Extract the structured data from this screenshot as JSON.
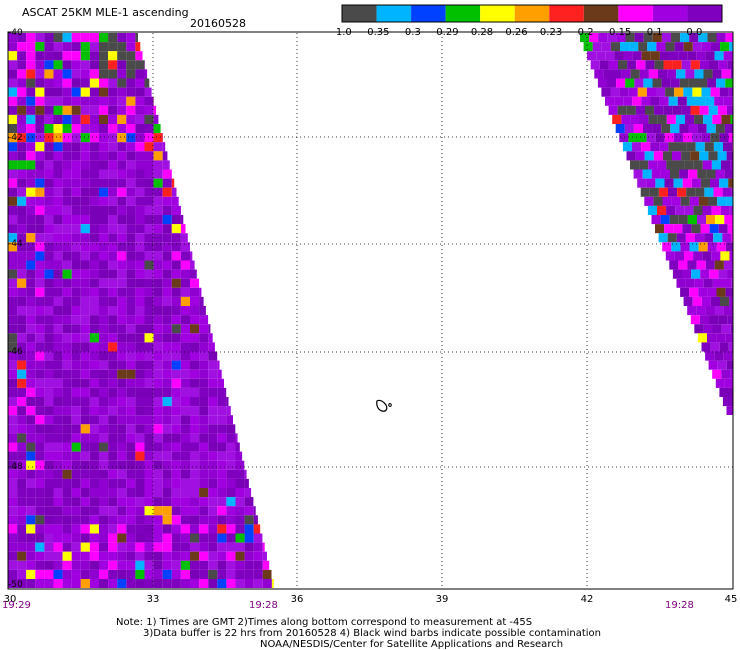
{
  "header": {
    "title": "ASCAT 25KM MLE-1 ascending",
    "date": "20160528"
  },
  "colorbar": {
    "labels": [
      "-1.0",
      "-0.35",
      "-0.3",
      "-0.29",
      "-0.28",
      "-0.26",
      "-0.23",
      "-0.2",
      "-0.15",
      "-0.1",
      "0.0"
    ],
    "colors": [
      "#4a4a4a",
      "#00b4ff",
      "#0040ff",
      "#00c000",
      "#ffff00",
      "#ffa000",
      "#ff2020",
      "#6a3a1a",
      "#ff00ff",
      "#a000e0",
      "#8000c0"
    ]
  },
  "axes": {
    "x_ticks": [
      "30",
      "33",
      "36",
      "39",
      "42",
      "45"
    ],
    "y_ticks": [
      "-40",
      "-42",
      "-44",
      "-46",
      "-48",
      "-50"
    ]
  },
  "times": {
    "left_start": "19:29",
    "left_end": "19:28",
    "right_end": "19:28"
  },
  "notes": {
    "line1": "Note: 1) Times are GMT 2)Times along bottom correspond to measurement at -45S",
    "line2": "3)Data buffer is 22 hrs from 20160528 4) Black wind barbs indicate possible contamination",
    "line3": "NOAA/NESDIS/Center for Satellite Applications and Research"
  },
  "chart_data": {
    "type": "heatmap",
    "title": "ASCAT 25KM MLE-1 ascending",
    "date": "20160528",
    "x_range": [
      30,
      45
    ],
    "y_range": [
      -50,
      -40
    ],
    "x_ticks": [
      30,
      33,
      36,
      39,
      42,
      45
    ],
    "y_ticks": [
      -40,
      -42,
      -44,
      -46,
      -48,
      -50
    ],
    "color_levels": [
      -1.0,
      -0.35,
      -0.3,
      -0.29,
      -0.28,
      -0.26,
      -0.23,
      -0.2,
      -0.15,
      -0.1,
      0.0
    ],
    "grid": true,
    "swaths": [
      "left",
      "right"
    ]
  }
}
